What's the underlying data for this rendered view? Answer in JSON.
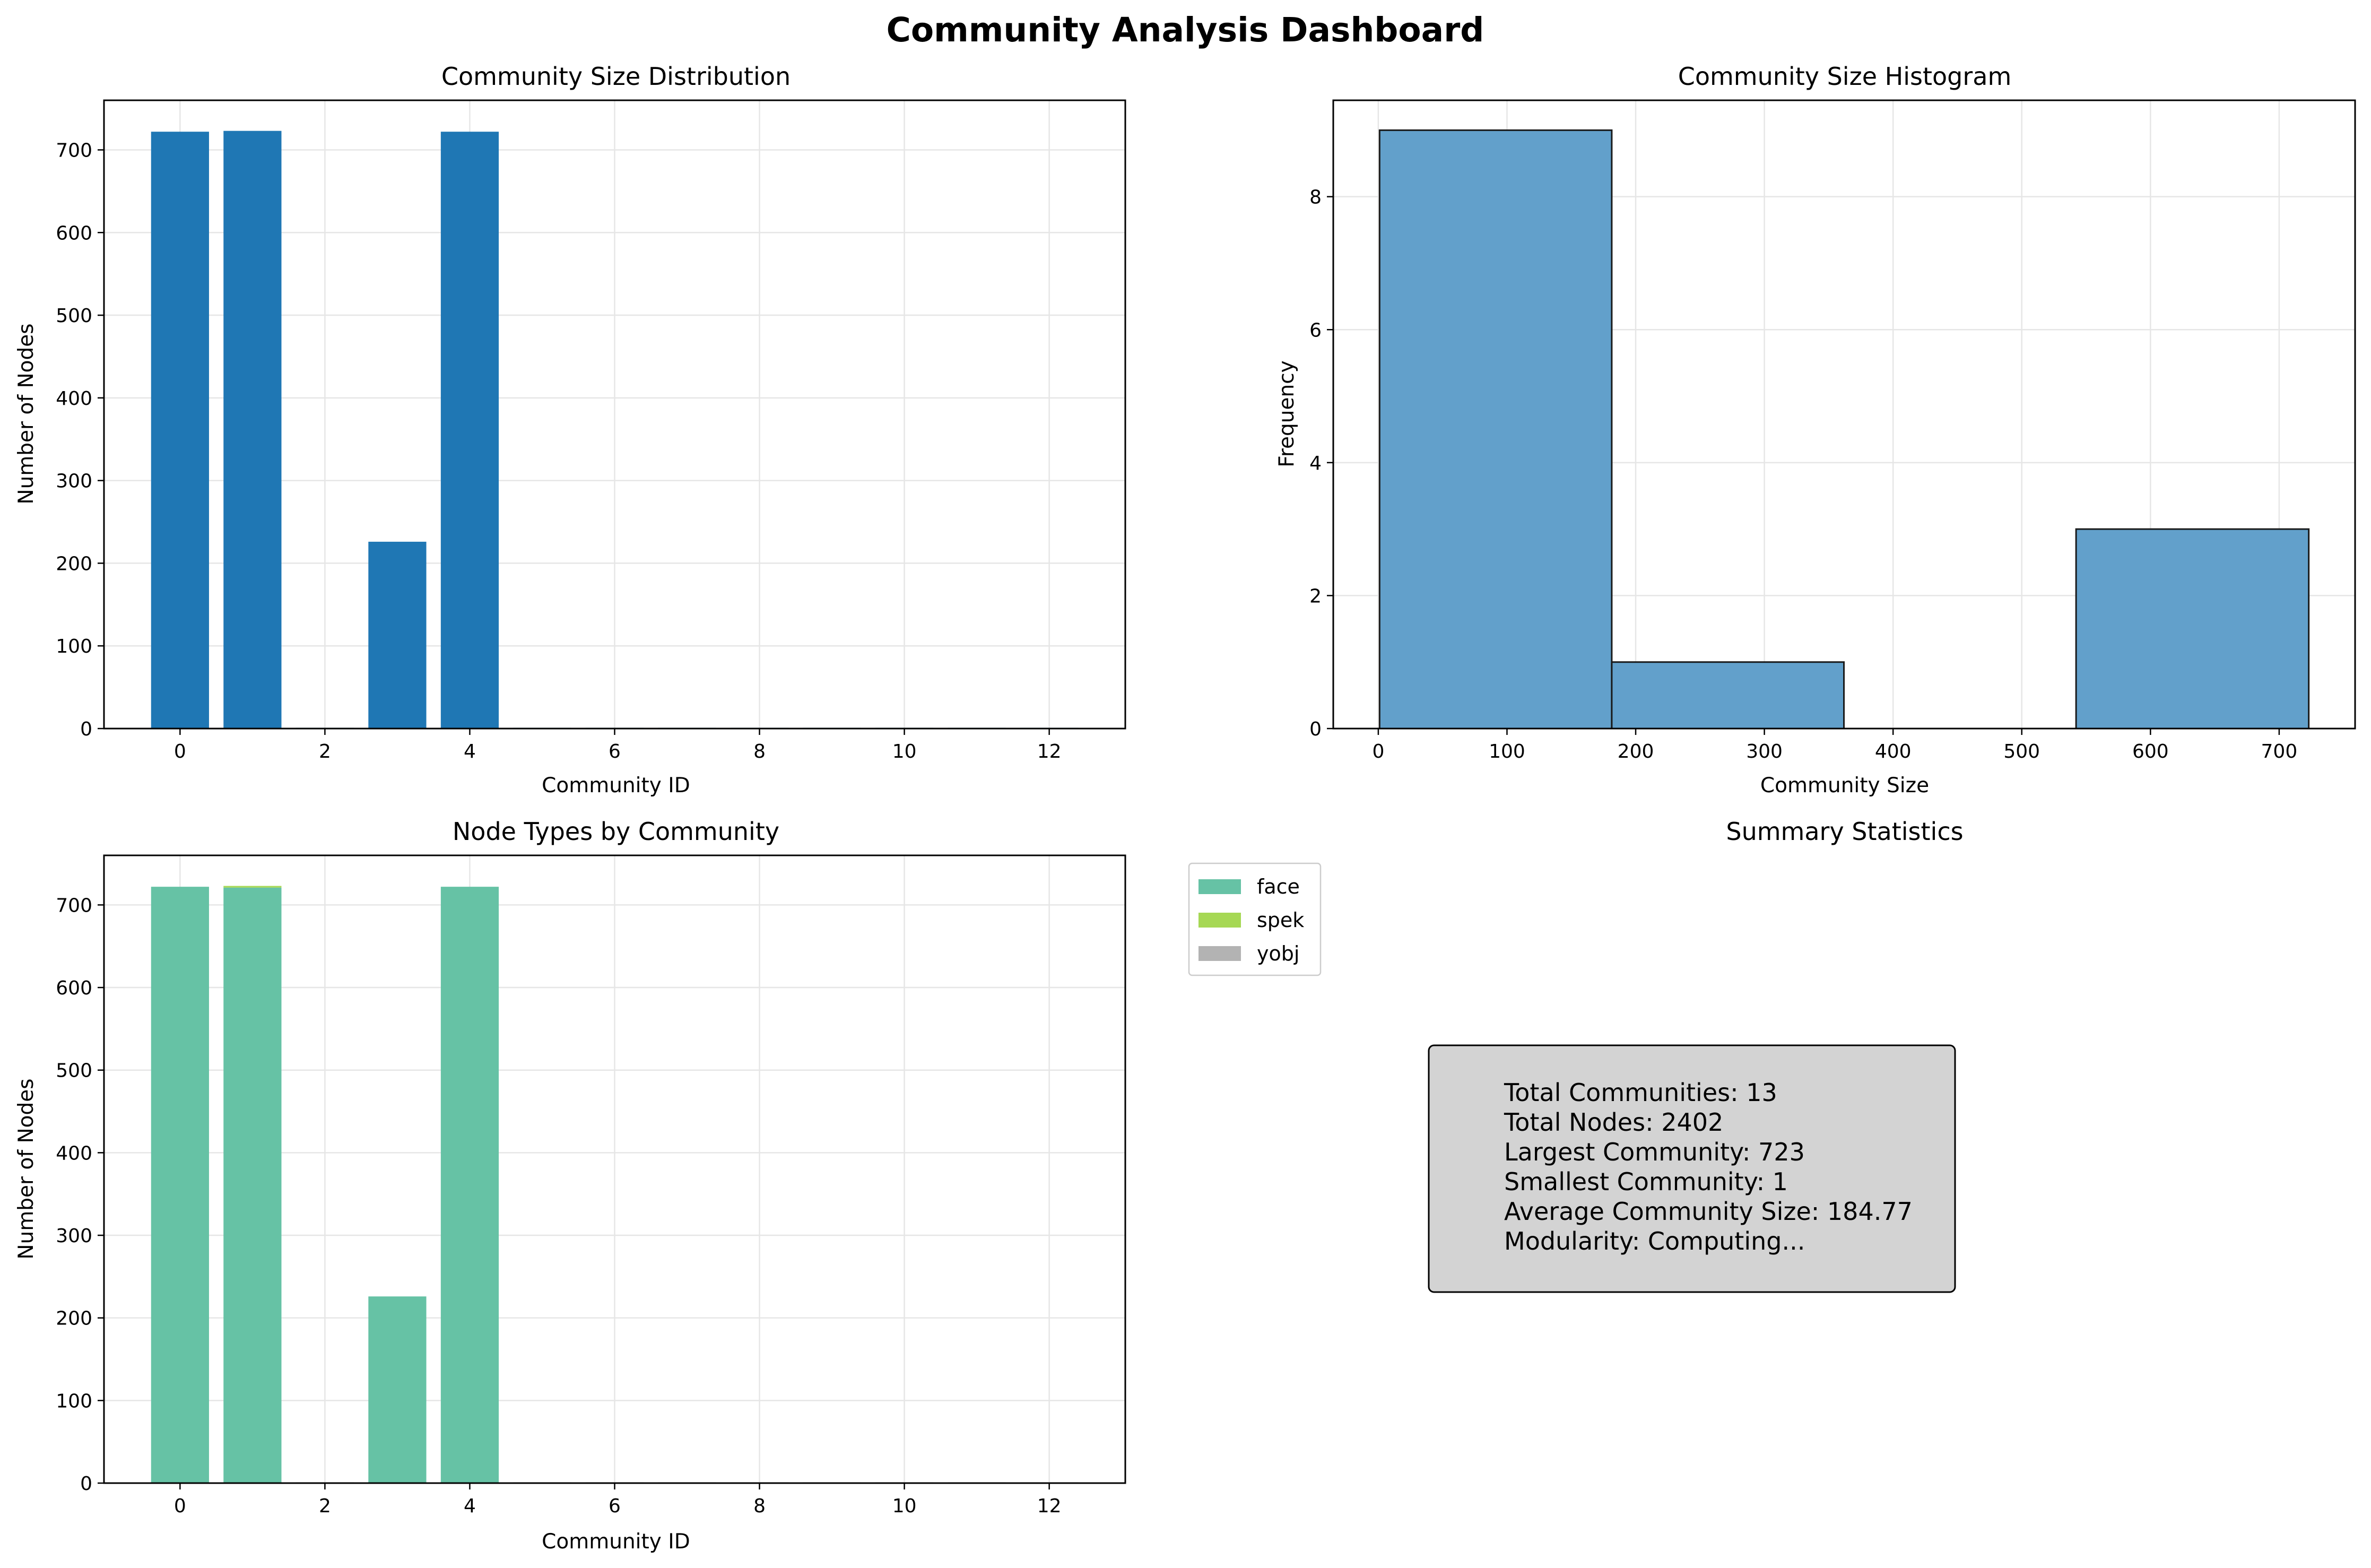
{
  "suptitle": "Community Analysis Dashboard",
  "colors": {
    "bar": "#1f77b4",
    "hist": "#62a0cb",
    "face": "#66c2a5",
    "spek": "#a6d854",
    "yobj": "#b3b3b3",
    "stats_box": "#d3d3d3",
    "grid": "#e6e6e6"
  },
  "chart_data": [
    {
      "type": "bar",
      "title": "Community Size Distribution",
      "xlabel": "Community ID",
      "ylabel": "Number of Nodes",
      "grid": true,
      "xlim": [
        -1.05,
        13.05
      ],
      "ylim": [
        0,
        760
      ],
      "xticks": [
        0,
        2,
        4,
        6,
        8,
        10,
        12
      ],
      "yticks": [
        0,
        100,
        200,
        300,
        400,
        500,
        600,
        700
      ],
      "categories": [
        0,
        1,
        2,
        3,
        4,
        5,
        6,
        7,
        8,
        9,
        10,
        11,
        12
      ],
      "values": [
        722,
        723,
        1,
        226,
        722,
        1,
        1,
        1,
        1,
        1,
        1,
        1,
        1
      ]
    },
    {
      "type": "bar",
      "title": "Community Size Histogram",
      "xlabel": "Community Size",
      "ylabel": "Frequency",
      "grid": true,
      "xlim": [
        -35,
        759
      ],
      "ylim": [
        0,
        9.45
      ],
      "xticks": [
        0,
        100,
        200,
        300,
        400,
        500,
        600,
        700
      ],
      "yticks": [
        0,
        2,
        4,
        6,
        8
      ],
      "bins": [
        {
          "from": 1,
          "to": 181.4,
          "count": 9
        },
        {
          "from": 181.4,
          "to": 361.8,
          "count": 1
        },
        {
          "from": 361.8,
          "to": 542.2,
          "count": 0
        },
        {
          "from": 542.2,
          "to": 723,
          "count": 3
        }
      ]
    },
    {
      "type": "bar",
      "title": "Node Types by Community",
      "xlabel": "Community ID",
      "ylabel": "Number of Nodes",
      "grid": true,
      "stacked": true,
      "legend": "outside-upper-right",
      "xlim": [
        -1.05,
        13.05
      ],
      "ylim": [
        0,
        760
      ],
      "xticks": [
        0,
        2,
        4,
        6,
        8,
        10,
        12
      ],
      "yticks": [
        0,
        100,
        200,
        300,
        400,
        500,
        600,
        700
      ],
      "categories": [
        0,
        1,
        2,
        3,
        4,
        5,
        6,
        7,
        8,
        9,
        10,
        11,
        12
      ],
      "series": [
        {
          "name": "face",
          "values": [
            722,
            721,
            0,
            226,
            722,
            0,
            0,
            0,
            0,
            0,
            0,
            0,
            0
          ]
        },
        {
          "name": "spek",
          "values": [
            0,
            2,
            0,
            0,
            0,
            0,
            0,
            0,
            0,
            0,
            0,
            0,
            0
          ]
        },
        {
          "name": "yobj",
          "values": [
            0,
            0,
            1,
            0,
            0,
            1,
            1,
            1,
            1,
            1,
            1,
            1,
            1
          ]
        }
      ]
    }
  ],
  "summary": {
    "title": "Summary Statistics",
    "lines": [
      "Total Communities: 13",
      "Total Nodes: 2402",
      "Largest Community: 723",
      "Smallest Community: 1",
      "Average Community Size: 184.77",
      "Modularity: Computing..."
    ]
  }
}
